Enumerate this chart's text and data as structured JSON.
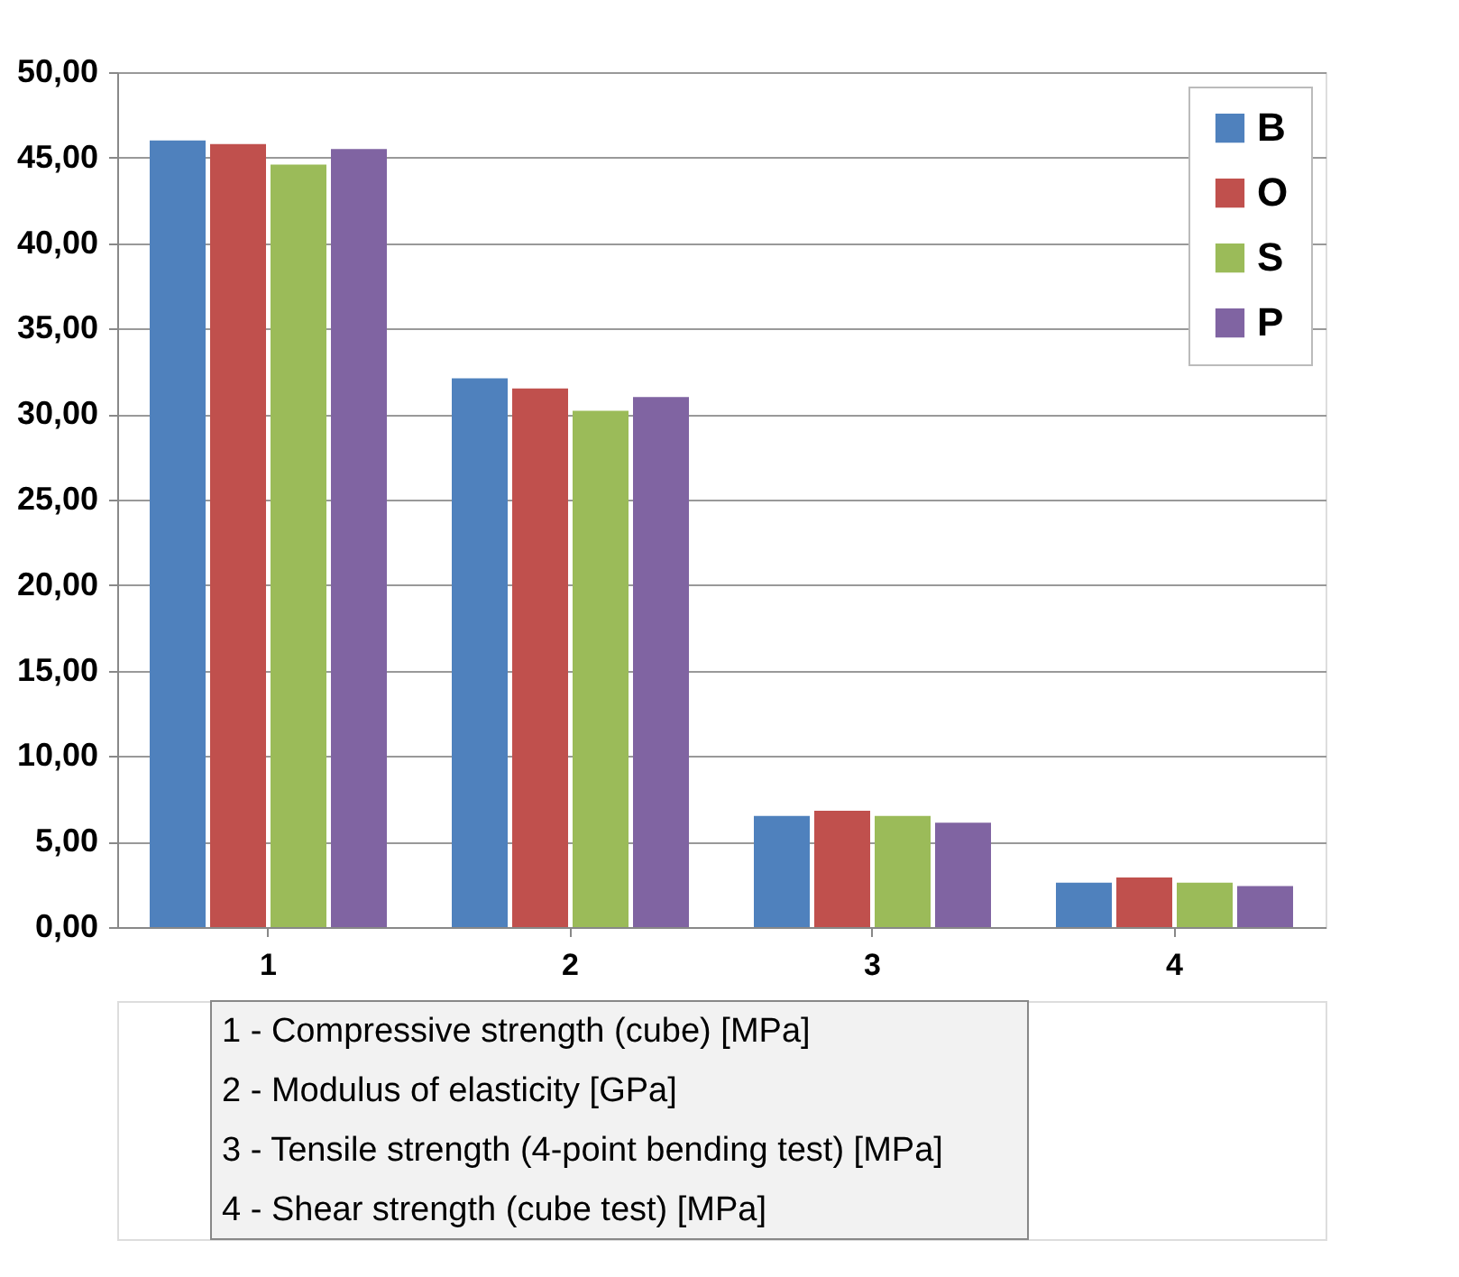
{
  "chart_data": {
    "type": "bar",
    "categories": [
      "1",
      "2",
      "3",
      "4"
    ],
    "series": [
      {
        "name": "B",
        "color": "#4f81bd",
        "values": [
          46.0,
          32.1,
          6.5,
          2.6
        ]
      },
      {
        "name": "O",
        "color": "#c0504d",
        "values": [
          45.8,
          31.5,
          6.8,
          2.9
        ]
      },
      {
        "name": "S",
        "color": "#9bbb59",
        "values": [
          44.6,
          30.2,
          6.5,
          2.6
        ]
      },
      {
        "name": "P",
        "color": "#8064a2",
        "values": [
          45.5,
          31.0,
          6.1,
          2.4
        ]
      }
    ],
    "ylim": [
      0,
      50
    ],
    "yticks": [
      {
        "value": 0,
        "label": "0,00"
      },
      {
        "value": 5,
        "label": "5,00"
      },
      {
        "value": 10,
        "label": "10,00"
      },
      {
        "value": 15,
        "label": "15,00"
      },
      {
        "value": 20,
        "label": "20,00"
      },
      {
        "value": 25,
        "label": "25,00"
      },
      {
        "value": 30,
        "label": "30,00"
      },
      {
        "value": 35,
        "label": "35,00"
      },
      {
        "value": 40,
        "label": "40,00"
      },
      {
        "value": 45,
        "label": "45,00"
      },
      {
        "value": 50,
        "label": "50,00"
      }
    ],
    "grid": "y",
    "legend": "top right",
    "annotations": [
      "1 - Compressive strength (cube)  [MPa]",
      "2 - Modulus of elasticity [GPa]",
      "3 - Tensile strength (4-point bending test)  [MPa]",
      "4 - Shear strength (cube test) [MPa]"
    ]
  }
}
